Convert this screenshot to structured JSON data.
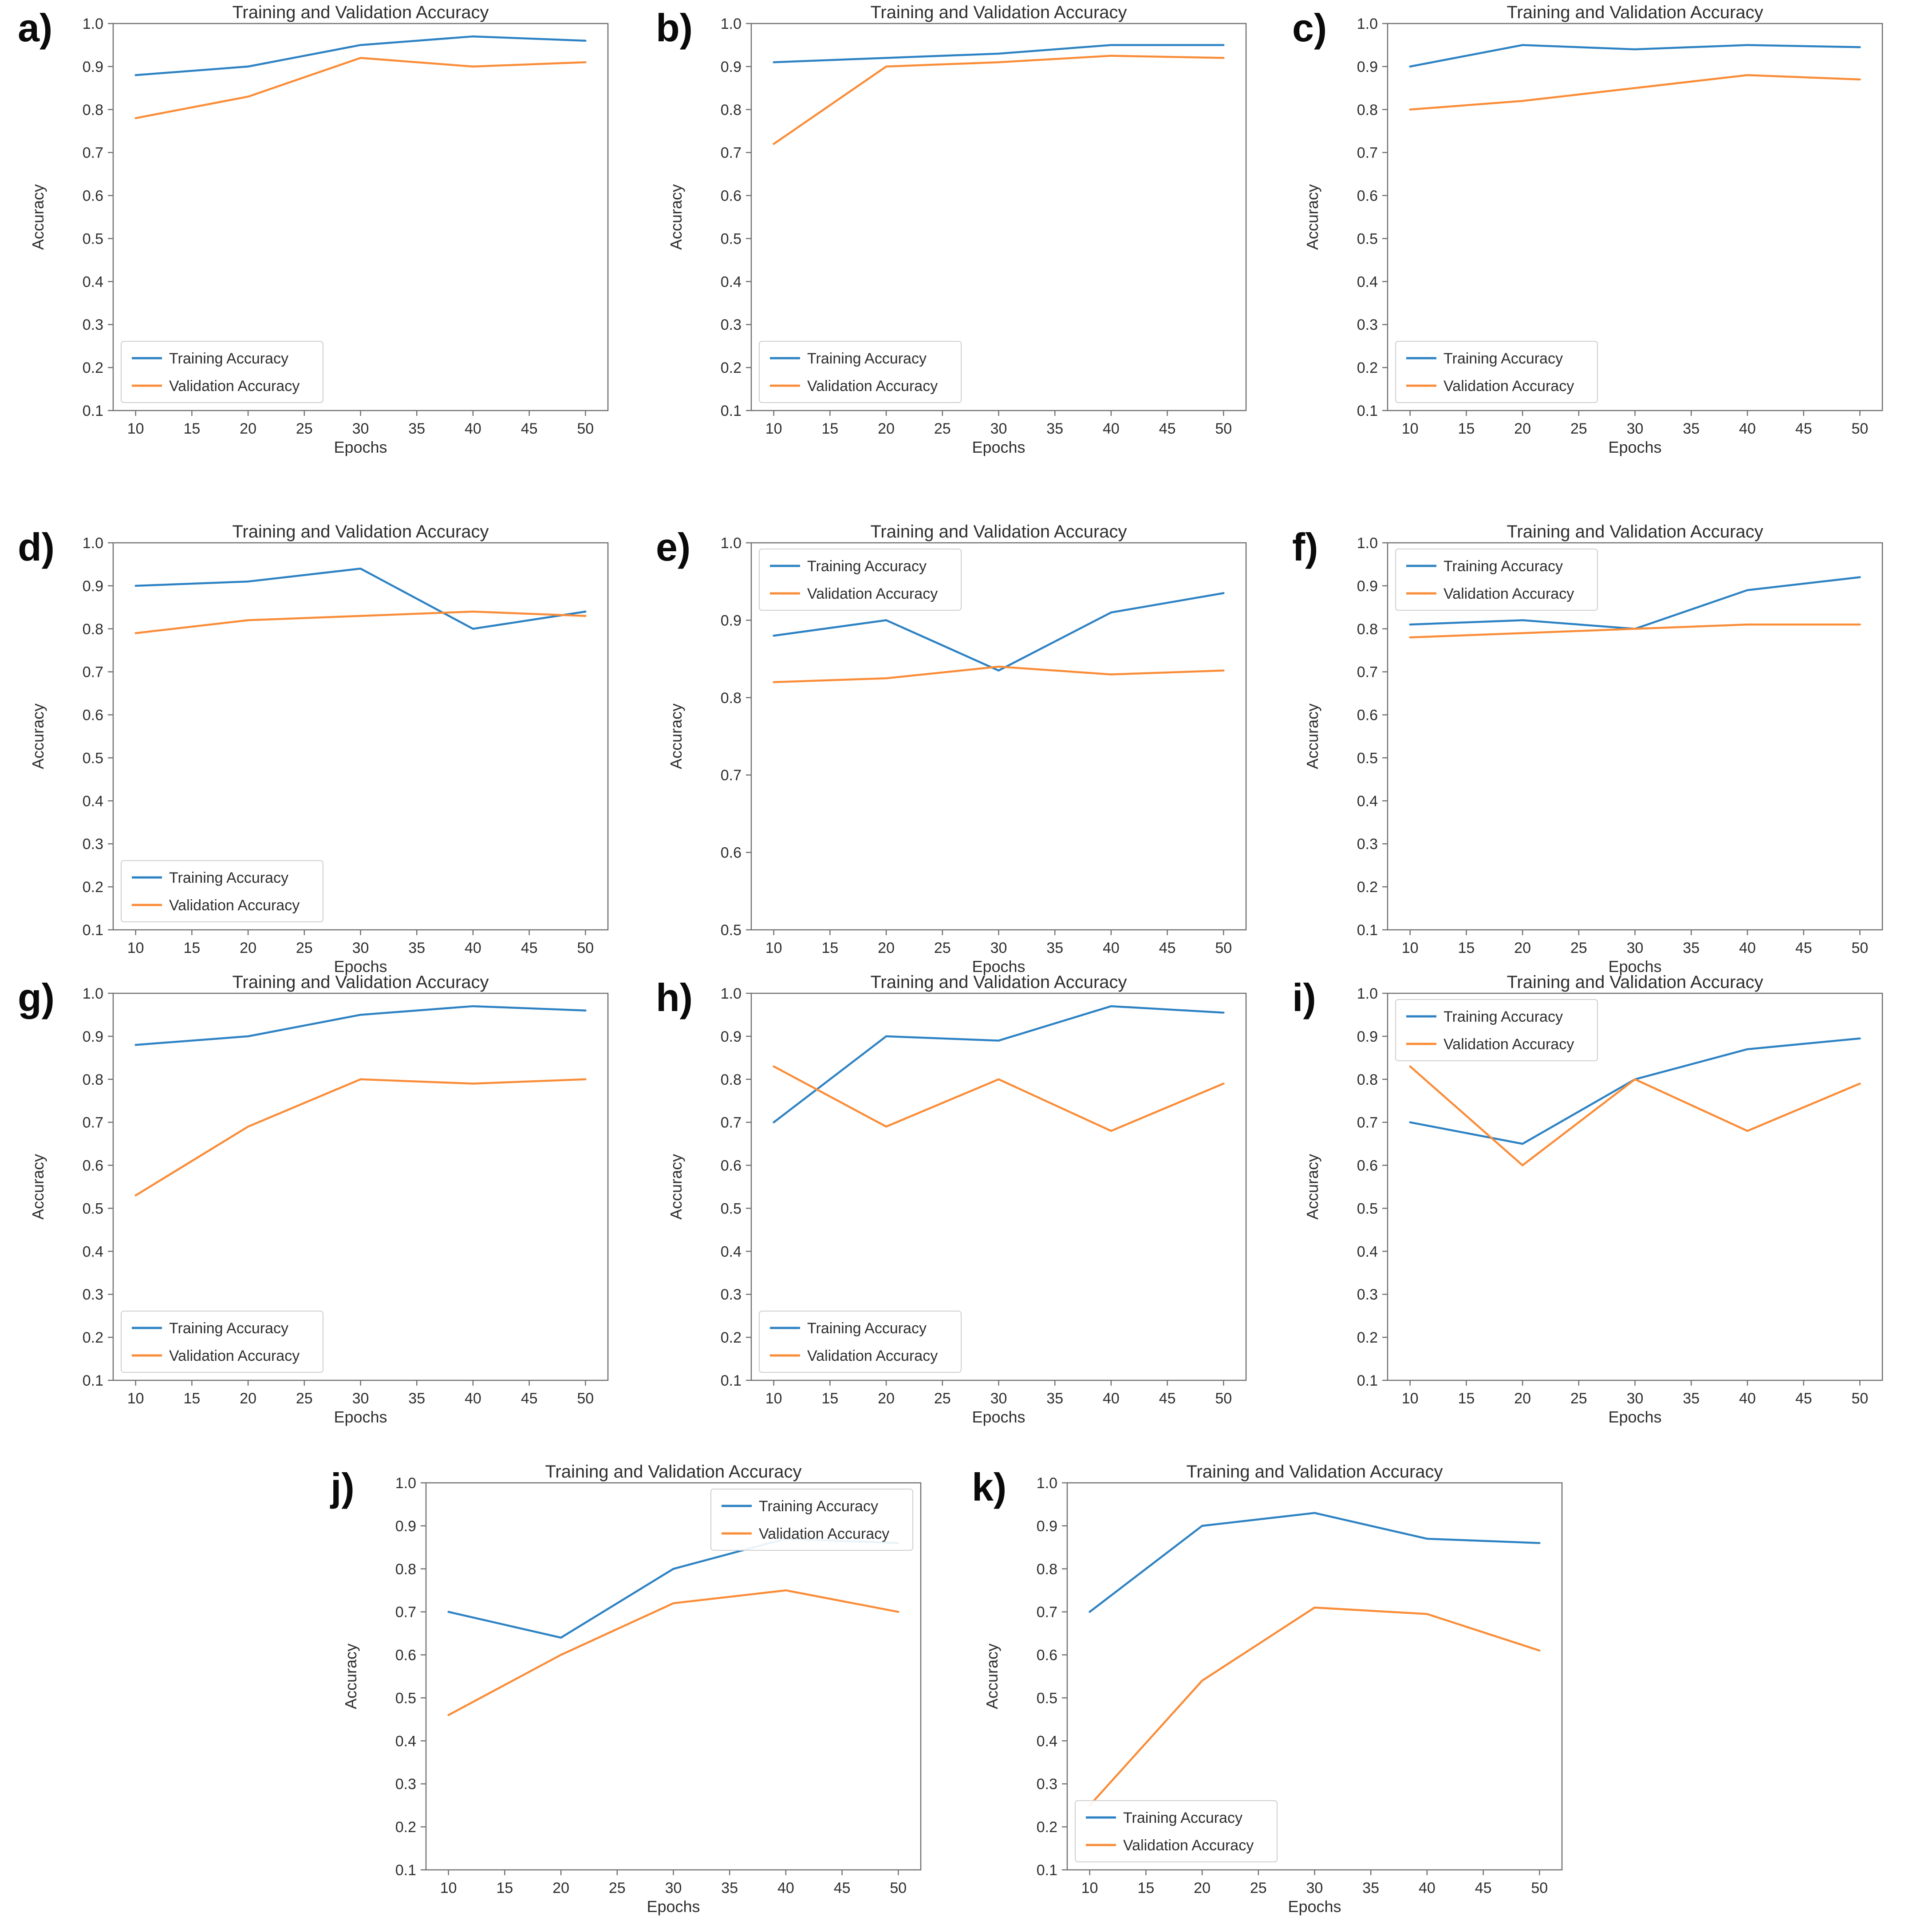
{
  "figure": {
    "background": "#ffffff",
    "axis_color": "#707070",
    "text_color": "#2e2e2e",
    "series_colors": {
      "training": "#2d82c3",
      "validation": "#fa8c37"
    },
    "legend_entries": [
      "Training Accuracy",
      "Validation Accuracy"
    ]
  },
  "chart_data": [
    {
      "id": "a",
      "label": "a)",
      "type": "line",
      "title": "Training and Validation Accuracy",
      "xlabel": "Epochs",
      "ylabel": "Accuracy",
      "x": [
        10,
        20,
        30,
        40,
        50
      ],
      "xlim": [
        8,
        52
      ],
      "ylim": [
        0.1,
        1.0
      ],
      "xticks": [
        "10",
        "15",
        "20",
        "25",
        "30",
        "35",
        "40",
        "45",
        "50"
      ],
      "yticks": [
        "0.1",
        "0.2",
        "0.3",
        "0.4",
        "0.5",
        "0.6",
        "0.7",
        "0.8",
        "0.9",
        "1.0"
      ],
      "grid": false,
      "legend_position": "lower left",
      "series": [
        {
          "name": "Training Accuracy",
          "color": "#2d82c3",
          "values": [
            0.88,
            0.9,
            0.95,
            0.97,
            0.96
          ]
        },
        {
          "name": "Validation Accuracy",
          "color": "#fa8c37",
          "values": [
            0.78,
            0.83,
            0.92,
            0.9,
            0.91
          ]
        }
      ]
    },
    {
      "id": "b",
      "label": "b)",
      "type": "line",
      "title": "Training and Validation Accuracy",
      "xlabel": "Epochs",
      "ylabel": "Accuracy",
      "x": [
        10,
        20,
        30,
        40,
        50
      ],
      "xlim": [
        8,
        52
      ],
      "ylim": [
        0.1,
        1.0
      ],
      "xticks": [
        "10",
        "15",
        "20",
        "25",
        "30",
        "35",
        "40",
        "45",
        "50"
      ],
      "yticks": [
        "0.1",
        "0.2",
        "0.3",
        "0.4",
        "0.5",
        "0.6",
        "0.7",
        "0.8",
        "0.9",
        "1.0"
      ],
      "grid": false,
      "legend_position": "lower left",
      "series": [
        {
          "name": "Training Accuracy",
          "color": "#2d82c3",
          "values": [
            0.91,
            0.92,
            0.93,
            0.95,
            0.95
          ]
        },
        {
          "name": "Validation Accuracy",
          "color": "#fa8c37",
          "values": [
            0.72,
            0.9,
            0.91,
            0.925,
            0.92
          ]
        }
      ]
    },
    {
      "id": "c",
      "label": "c)",
      "type": "line",
      "title": "Training and Validation Accuracy",
      "xlabel": "Epochs",
      "ylabel": "Accuracy",
      "x": [
        10,
        20,
        30,
        40,
        50
      ],
      "xlim": [
        8,
        52
      ],
      "ylim": [
        0.1,
        1.0
      ],
      "xticks": [
        "10",
        "15",
        "20",
        "25",
        "30",
        "35",
        "40",
        "45",
        "50"
      ],
      "yticks": [
        "0.1",
        "0.2",
        "0.3",
        "0.4",
        "0.5",
        "0.6",
        "0.7",
        "0.8",
        "0.9",
        "1.0"
      ],
      "grid": false,
      "legend_position": "lower left",
      "series": [
        {
          "name": "Training Accuracy",
          "color": "#2d82c3",
          "values": [
            0.9,
            0.95,
            0.94,
            0.95,
            0.945
          ]
        },
        {
          "name": "Validation Accuracy",
          "color": "#fa8c37",
          "values": [
            0.8,
            0.82,
            0.85,
            0.88,
            0.87
          ]
        }
      ]
    },
    {
      "id": "d",
      "label": "d)",
      "type": "line",
      "title": "Training and Validation Accuracy",
      "xlabel": "Epochs",
      "ylabel": "Accuracy",
      "x": [
        10,
        20,
        30,
        40,
        50
      ],
      "xlim": [
        8,
        52
      ],
      "ylim": [
        0.1,
        1.0
      ],
      "xticks": [
        "10",
        "15",
        "20",
        "25",
        "30",
        "35",
        "40",
        "45",
        "50"
      ],
      "yticks": [
        "0.1",
        "0.2",
        "0.3",
        "0.4",
        "0.5",
        "0.6",
        "0.7",
        "0.8",
        "0.9",
        "1.0"
      ],
      "grid": false,
      "legend_position": "lower left",
      "series": [
        {
          "name": "Training Accuracy",
          "color": "#2d82c3",
          "values": [
            0.9,
            0.91,
            0.94,
            0.8,
            0.84
          ]
        },
        {
          "name": "Validation Accuracy",
          "color": "#fa8c37",
          "values": [
            0.79,
            0.82,
            0.83,
            0.84,
            0.83
          ]
        }
      ]
    },
    {
      "id": "e",
      "label": "e)",
      "type": "line",
      "title": "Training and Validation Accuracy",
      "xlabel": "Epochs",
      "ylabel": "Accuracy",
      "x": [
        10,
        20,
        30,
        40,
        50
      ],
      "xlim": [
        8,
        52
      ],
      "ylim": [
        0.5,
        1.0
      ],
      "xticks": [
        "10",
        "15",
        "20",
        "25",
        "30",
        "35",
        "40",
        "45",
        "50"
      ],
      "yticks": [
        "0.5",
        "0.6",
        "0.7",
        "0.8",
        "0.9",
        "1.0"
      ],
      "grid": false,
      "legend_position": "upper left",
      "series": [
        {
          "name": "Training Accuracy",
          "color": "#2d82c3",
          "values": [
            0.88,
            0.9,
            0.835,
            0.91,
            0.935
          ]
        },
        {
          "name": "Validation Accuracy",
          "color": "#fa8c37",
          "values": [
            0.82,
            0.825,
            0.84,
            0.83,
            0.835
          ]
        }
      ]
    },
    {
      "id": "f",
      "label": "f)",
      "type": "line",
      "title": "Training and Validation Accuracy",
      "xlabel": "Epochs",
      "ylabel": "Accuracy",
      "x": [
        10,
        20,
        30,
        40,
        50
      ],
      "xlim": [
        8,
        52
      ],
      "ylim": [
        0.1,
        1.0
      ],
      "xticks": [
        "10",
        "15",
        "20",
        "25",
        "30",
        "35",
        "40",
        "45",
        "50"
      ],
      "yticks": [
        "0.1",
        "0.2",
        "0.3",
        "0.4",
        "0.5",
        "0.6",
        "0.7",
        "0.8",
        "0.9",
        "1.0"
      ],
      "grid": false,
      "legend_position": "upper left",
      "series": [
        {
          "name": "Training Accuracy",
          "color": "#2d82c3",
          "values": [
            0.81,
            0.82,
            0.8,
            0.89,
            0.92
          ]
        },
        {
          "name": "Validation Accuracy",
          "color": "#fa8c37",
          "values": [
            0.78,
            0.79,
            0.8,
            0.81,
            0.81
          ]
        }
      ]
    },
    {
      "id": "g",
      "label": "g)",
      "type": "line",
      "title": "Training and Validation Accuracy",
      "xlabel": "Epochs",
      "ylabel": "Accuracy",
      "x": [
        10,
        20,
        30,
        40,
        50
      ],
      "xlim": [
        8,
        52
      ],
      "ylim": [
        0.1,
        1.0
      ],
      "xticks": [
        "10",
        "15",
        "20",
        "25",
        "30",
        "35",
        "40",
        "45",
        "50"
      ],
      "yticks": [
        "0.1",
        "0.2",
        "0.3",
        "0.4",
        "0.5",
        "0.6",
        "0.7",
        "0.8",
        "0.9",
        "1.0"
      ],
      "grid": false,
      "legend_position": "lower left",
      "series": [
        {
          "name": "Training Accuracy",
          "color": "#2d82c3",
          "values": [
            0.88,
            0.9,
            0.95,
            0.97,
            0.96
          ]
        },
        {
          "name": "Validation Accuracy",
          "color": "#fa8c37",
          "values": [
            0.53,
            0.69,
            0.8,
            0.79,
            0.8
          ]
        }
      ]
    },
    {
      "id": "h",
      "label": "h)",
      "type": "line",
      "title": "Training and Validation Accuracy",
      "xlabel": "Epochs",
      "ylabel": "Accuracy",
      "x": [
        10,
        20,
        30,
        40,
        50
      ],
      "xlim": [
        8,
        52
      ],
      "ylim": [
        0.1,
        1.0
      ],
      "xticks": [
        "10",
        "15",
        "20",
        "25",
        "30",
        "35",
        "40",
        "45",
        "50"
      ],
      "yticks": [
        "0.1",
        "0.2",
        "0.3",
        "0.4",
        "0.5",
        "0.6",
        "0.7",
        "0.8",
        "0.9",
        "1.0"
      ],
      "grid": false,
      "legend_position": "lower left",
      "series": [
        {
          "name": "Training Accuracy",
          "color": "#2d82c3",
          "values": [
            0.7,
            0.9,
            0.89,
            0.97,
            0.955
          ]
        },
        {
          "name": "Validation Accuracy",
          "color": "#fa8c37",
          "values": [
            0.83,
            0.69,
            0.8,
            0.68,
            0.79
          ]
        }
      ]
    },
    {
      "id": "i",
      "label": "i)",
      "type": "line",
      "title": "Training and Validation Accuracy",
      "xlabel": "Epochs",
      "ylabel": "Accuracy",
      "x": [
        10,
        20,
        30,
        40,
        50
      ],
      "xlim": [
        8,
        52
      ],
      "ylim": [
        0.1,
        1.0
      ],
      "xticks": [
        "10",
        "15",
        "20",
        "25",
        "30",
        "35",
        "40",
        "45",
        "50"
      ],
      "yticks": [
        "0.1",
        "0.2",
        "0.3",
        "0.4",
        "0.5",
        "0.6",
        "0.7",
        "0.8",
        "0.9",
        "1.0"
      ],
      "grid": false,
      "legend_position": "upper left",
      "series": [
        {
          "name": "Training Accuracy",
          "color": "#2d82c3",
          "values": [
            0.7,
            0.65,
            0.8,
            0.87,
            0.895
          ]
        },
        {
          "name": "Validation Accuracy",
          "color": "#fa8c37",
          "values": [
            0.83,
            0.6,
            0.8,
            0.68,
            0.79
          ]
        }
      ]
    },
    {
      "id": "j",
      "label": "j)",
      "type": "line",
      "title": "Training and Validation Accuracy",
      "xlabel": "Epochs",
      "ylabel": "Accuracy",
      "x": [
        10,
        20,
        30,
        40,
        50
      ],
      "xlim": [
        8,
        52
      ],
      "ylim": [
        0.1,
        1.0
      ],
      "xticks": [
        "10",
        "15",
        "20",
        "25",
        "30",
        "35",
        "40",
        "45",
        "50"
      ],
      "yticks": [
        "0.1",
        "0.2",
        "0.3",
        "0.4",
        "0.5",
        "0.6",
        "0.7",
        "0.8",
        "0.9",
        "1.0"
      ],
      "grid": false,
      "legend_position": "upper right",
      "series": [
        {
          "name": "Training Accuracy",
          "color": "#2d82c3",
          "values": [
            0.7,
            0.64,
            0.8,
            0.87,
            0.86
          ]
        },
        {
          "name": "Validation Accuracy",
          "color": "#fa8c37",
          "values": [
            0.46,
            0.6,
            0.72,
            0.75,
            0.7
          ]
        }
      ]
    },
    {
      "id": "k",
      "label": "k)",
      "type": "line",
      "title": "Training and Validation Accuracy",
      "xlabel": "Epochs",
      "ylabel": "Accuracy",
      "x": [
        10,
        20,
        30,
        40,
        50
      ],
      "xlim": [
        8,
        52
      ],
      "ylim": [
        0.1,
        1.0
      ],
      "xticks": [
        "10",
        "15",
        "20",
        "25",
        "30",
        "35",
        "40",
        "45",
        "50"
      ],
      "yticks": [
        "0.1",
        "0.2",
        "0.3",
        "0.4",
        "0.5",
        "0.6",
        "0.7",
        "0.8",
        "0.9",
        "1.0"
      ],
      "grid": false,
      "legend_position": "lower left",
      "series": [
        {
          "name": "Training Accuracy",
          "color": "#2d82c3",
          "values": [
            0.7,
            0.9,
            0.93,
            0.87,
            0.86
          ]
        },
        {
          "name": "Validation Accuracy",
          "color": "#fa8c37",
          "values": [
            0.25,
            0.54,
            0.71,
            0.695,
            0.61
          ]
        }
      ]
    }
  ]
}
